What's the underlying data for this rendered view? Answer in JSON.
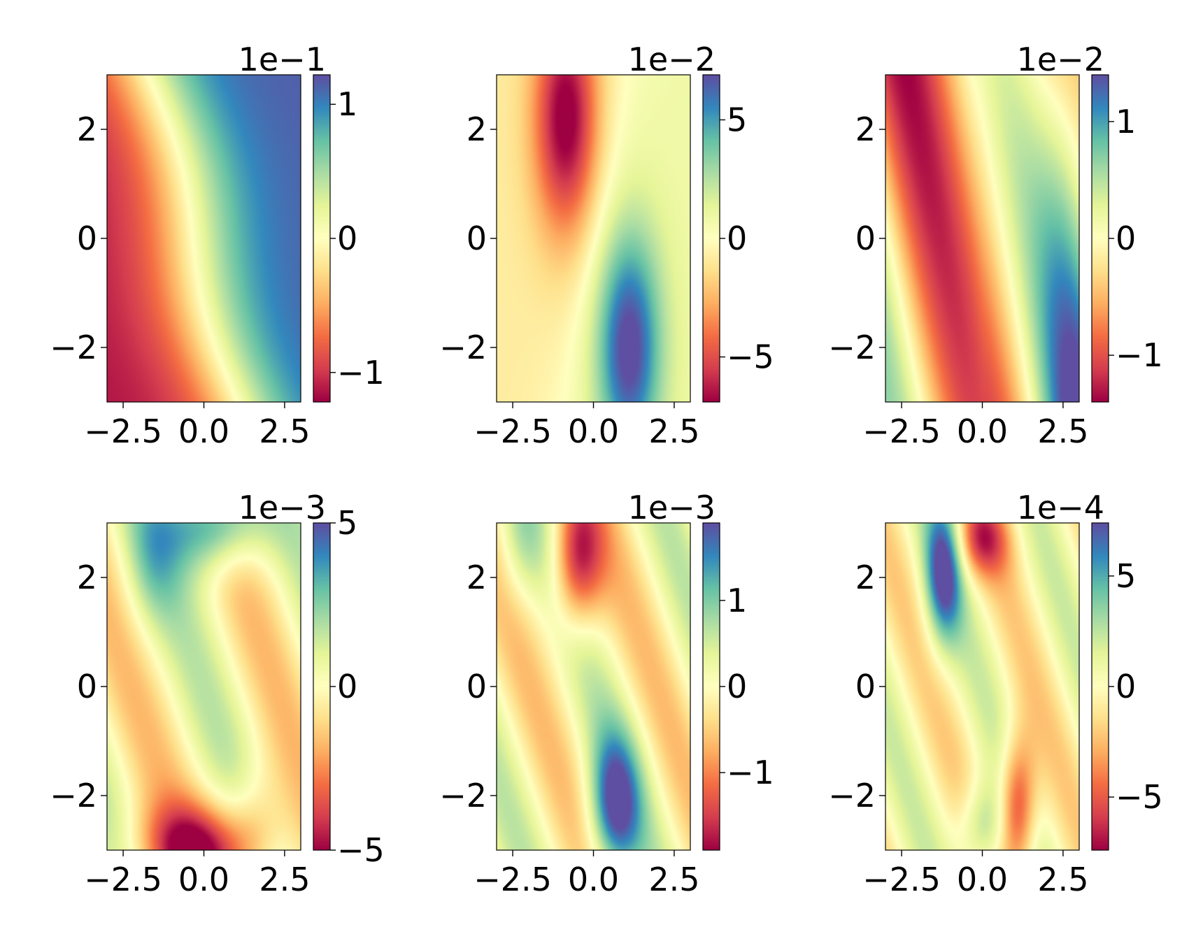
{
  "figure": {
    "colormap": "Spectral",
    "colormap_stops": [
      "#9e0142",
      "#d53e4f",
      "#f46d43",
      "#fdae61",
      "#fee08b",
      "#ffffbf",
      "#e6f598",
      "#abdda4",
      "#66c2a5",
      "#3288bd",
      "#5e4fa2"
    ]
  },
  "chart_data": [
    {
      "type": "heatmap",
      "title": "",
      "xlabel": "",
      "ylabel": "",
      "xlim": [
        -3,
        3
      ],
      "ylim": [
        -3,
        3
      ],
      "x_ticks": [
        -2.5,
        0.0,
        2.5
      ],
      "x_tick_labels": [
        "−2.5",
        "0.0",
        "2.5"
      ],
      "y_ticks": [
        -2,
        0,
        2
      ],
      "y_tick_labels": [
        "−2",
        "0",
        "2"
      ],
      "colorbar": {
        "offset_label": "1e−1",
        "vmin": -1.22,
        "vmax": 1.22,
        "ticks": [
          -1,
          0,
          1
        ],
        "tick_labels": [
          "−1",
          "0",
          "1"
        ]
      }
    },
    {
      "type": "heatmap",
      "title": "",
      "xlabel": "",
      "ylabel": "",
      "xlim": [
        -3,
        3
      ],
      "ylim": [
        -3,
        3
      ],
      "x_ticks": [
        -2.5,
        0.0,
        2.5
      ],
      "x_tick_labels": [
        "−2.5",
        "0.0",
        "2.5"
      ],
      "y_ticks": [
        -2,
        0,
        2
      ],
      "y_tick_labels": [
        "−2",
        "0",
        "2"
      ],
      "colorbar": {
        "offset_label": "1e−2",
        "vmin": -6.9,
        "vmax": 6.9,
        "ticks": [
          -5,
          0,
          5
        ],
        "tick_labels": [
          "−5",
          "0",
          "5"
        ]
      }
    },
    {
      "type": "heatmap",
      "title": "",
      "xlabel": "",
      "ylabel": "",
      "xlim": [
        -3,
        3
      ],
      "ylim": [
        -3,
        3
      ],
      "x_ticks": [
        -2.5,
        0.0,
        2.5
      ],
      "x_tick_labels": [
        "−2.5",
        "0.0",
        "2.5"
      ],
      "y_ticks": [
        -2,
        0,
        2
      ],
      "y_tick_labels": [
        "−2",
        "0",
        "2"
      ],
      "colorbar": {
        "offset_label": "1e−2",
        "vmin": -1.4,
        "vmax": 1.4,
        "ticks": [
          -1,
          0,
          1
        ],
        "tick_labels": [
          "−1",
          "0",
          "1"
        ]
      }
    },
    {
      "type": "heatmap",
      "title": "",
      "xlabel": "",
      "ylabel": "",
      "xlim": [
        -3,
        3
      ],
      "ylim": [
        -3,
        3
      ],
      "x_ticks": [
        -2.5,
        0.0,
        2.5
      ],
      "x_tick_labels": [
        "−2.5",
        "0.0",
        "2.5"
      ],
      "y_ticks": [
        -2,
        0,
        2
      ],
      "y_tick_labels": [
        "−2",
        "0",
        "2"
      ],
      "colorbar": {
        "offset_label": "1e−3",
        "vmin": -5.0,
        "vmax": 5.0,
        "ticks": [
          -5,
          0,
          5
        ],
        "tick_labels": [
          "−5",
          "0",
          "5"
        ]
      }
    },
    {
      "type": "heatmap",
      "title": "",
      "xlabel": "",
      "ylabel": "",
      "xlim": [
        -3,
        3
      ],
      "ylim": [
        -3,
        3
      ],
      "x_ticks": [
        -2.5,
        0.0,
        2.5
      ],
      "x_tick_labels": [
        "−2.5",
        "0.0",
        "2.5"
      ],
      "y_ticks": [
        -2,
        0,
        2
      ],
      "y_tick_labels": [
        "−2",
        "0",
        "2"
      ],
      "colorbar": {
        "offset_label": "1e−3",
        "vmin": -1.9,
        "vmax": 1.9,
        "ticks": [
          -1,
          0,
          1
        ],
        "tick_labels": [
          "−1",
          "0",
          "1"
        ]
      }
    },
    {
      "type": "heatmap",
      "title": "",
      "xlabel": "",
      "ylabel": "",
      "xlim": [
        -3,
        3
      ],
      "ylim": [
        -3,
        3
      ],
      "x_ticks": [
        -2.5,
        0.0,
        2.5
      ],
      "x_tick_labels": [
        "−2.5",
        "0.0",
        "2.5"
      ],
      "y_ticks": [
        -2,
        0,
        2
      ],
      "y_tick_labels": [
        "−2",
        "0",
        "2"
      ],
      "colorbar": {
        "offset_label": "1e−4",
        "vmin": -7.4,
        "vmax": 7.4,
        "ticks": [
          -5,
          0,
          5
        ],
        "tick_labels": [
          "−5",
          "0",
          "5"
        ]
      }
    }
  ]
}
